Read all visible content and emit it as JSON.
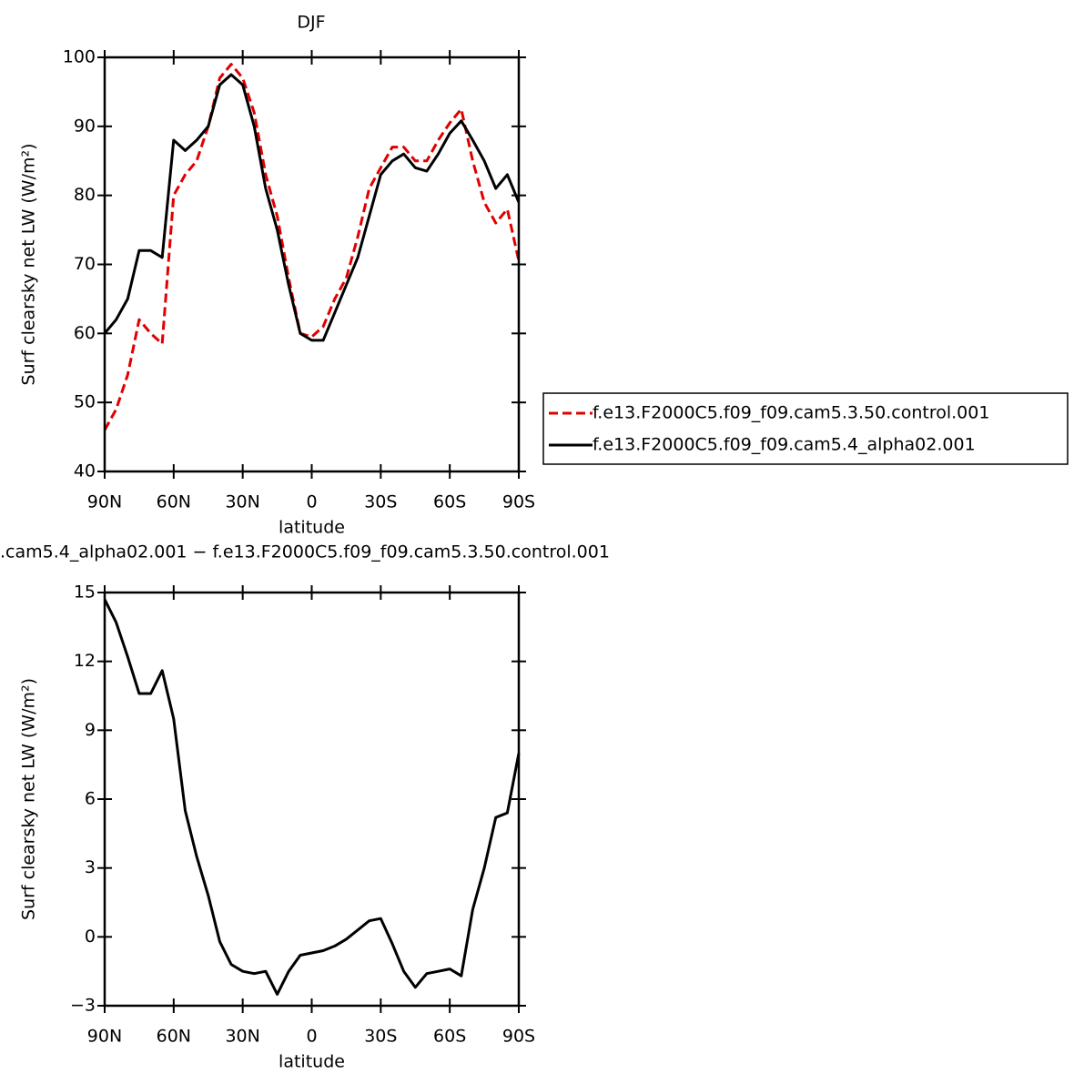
{
  "chart_data": [
    {
      "type": "line",
      "title": "DJF",
      "xlabel": "latitude",
      "ylabel": "Surf clearsky net LW (W/m²)",
      "x": [
        90,
        85,
        80,
        75,
        70,
        65,
        60,
        55,
        50,
        45,
        40,
        35,
        30,
        25,
        20,
        15,
        10,
        5,
        0,
        -5,
        -10,
        -15,
        -20,
        -25,
        -30,
        -35,
        -40,
        -45,
        -50,
        -55,
        -60,
        -65,
        -70,
        -75,
        -80,
        -85,
        -90
      ],
      "series": [
        {
          "name": "f.e13.F2000C5.f09_f09.cam5.3.50.control.001",
          "color": "#e00000",
          "dash": true,
          "values": [
            46,
            49,
            54,
            62,
            60,
            58.5,
            80,
            83,
            85,
            90,
            97,
            99,
            97,
            92,
            83,
            77,
            68,
            60,
            59.5,
            61,
            65,
            68,
            74,
            81,
            84,
            87,
            87,
            85,
            85,
            88,
            90.5,
            92.5,
            85,
            79,
            76,
            78,
            70.5
          ]
        },
        {
          "name": "f.e13.F2000C5.f09_f09.cam5.4_alpha02.001",
          "color": "#000000",
          "dash": false,
          "values": [
            60,
            62,
            65,
            72,
            72,
            71,
            88,
            86.5,
            88,
            90,
            96,
            97.5,
            96,
            90,
            81,
            75,
            67,
            60,
            59,
            59,
            63,
            67,
            71,
            77,
            83,
            85,
            86,
            84,
            83.5,
            86,
            89,
            90.8,
            88,
            85,
            81,
            83,
            79
          ]
        }
      ],
      "xlim": [
        90,
        -90
      ],
      "xticks": [
        {
          "value": 90,
          "label": "90N"
        },
        {
          "value": 60,
          "label": "60N"
        },
        {
          "value": 30,
          "label": "30N"
        },
        0,
        {
          "value": -30,
          "label": "30S"
        },
        {
          "value": -60,
          "label": "60S"
        },
        {
          "value": -90,
          "label": "90S"
        }
      ],
      "ylim": [
        40,
        100
      ],
      "yticks": [
        40,
        50,
        60,
        70,
        80,
        90,
        100
      ],
      "legend": "right"
    },
    {
      "type": "line",
      "title": ".cam5.4_alpha02.001 − f.e13.F2000C5.f09_f09.cam5.3.50.control.001",
      "xlabel": "latitude",
      "ylabel": "Surf clearsky net LW (W/m²)",
      "x": [
        90,
        85,
        80,
        75,
        70,
        65,
        60,
        55,
        50,
        45,
        40,
        35,
        30,
        25,
        20,
        15,
        10,
        5,
        0,
        -5,
        -10,
        -15,
        -20,
        -25,
        -30,
        -35,
        -40,
        -45,
        -50,
        -55,
        -60,
        -65,
        -70,
        -75,
        -80,
        -85,
        -90
      ],
      "series": [
        {
          "color": "#000000",
          "dash": false,
          "values": [
            14.7,
            13.7,
            12.2,
            10.6,
            10.6,
            11.6,
            9.5,
            5.5,
            3.5,
            1.8,
            -0.2,
            -1.2,
            -1.5,
            -1.6,
            -1.5,
            -2.5,
            -1.5,
            -0.8,
            -0.7,
            -0.6,
            -0.4,
            -0.1,
            0.3,
            0.7,
            0.8,
            -0.3,
            -1.5,
            -2.2,
            -1.6,
            -1.5,
            -1.4,
            -1.7,
            1.2,
            3,
            5.2,
            5.4,
            8
          ]
        }
      ],
      "xlim": [
        90,
        -90
      ],
      "xticks": [
        {
          "value": 90,
          "label": "90N"
        },
        {
          "value": 60,
          "label": "60N"
        },
        {
          "value": 30,
          "label": "30N"
        },
        0,
        {
          "value": -30,
          "label": "30S"
        },
        {
          "value": -60,
          "label": "60S"
        },
        {
          "value": -90,
          "label": "90S"
        }
      ],
      "ylim": [
        -3,
        15
      ],
      "yticks": [
        {
          "value": -3,
          "label": "−3"
        },
        0,
        3,
        6,
        9,
        12,
        15
      ]
    }
  ]
}
